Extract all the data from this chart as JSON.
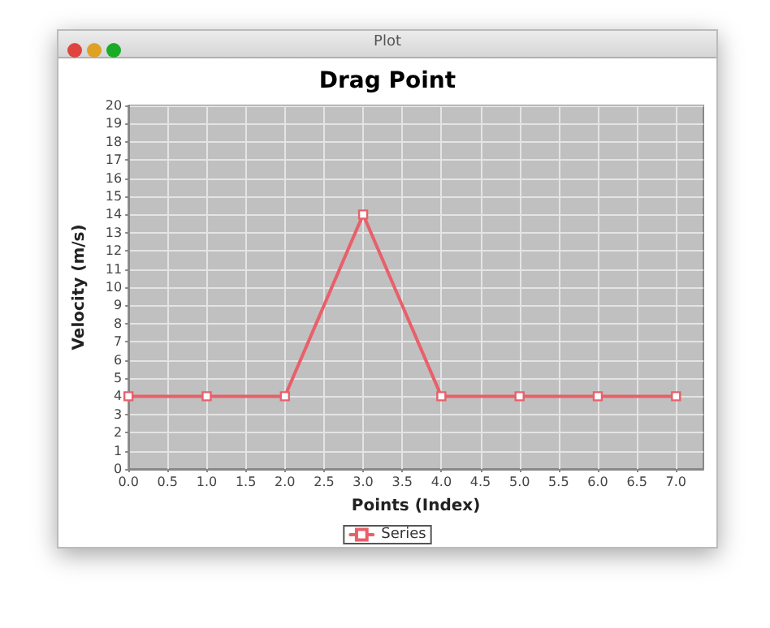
{
  "chart_data": {
    "type": "line",
    "title": "Drag Point",
    "xlabel": "Points (Index)",
    "ylabel": "Velocity (m/s)",
    "annotations": [
      "Plot"
    ],
    "x": [
      0,
      1,
      2,
      3,
      4,
      5,
      6,
      7
    ],
    "series": [
      {
        "name": "Series",
        "color": "#e8606a",
        "values": [
          4,
          4,
          4,
          14,
          4,
          4,
          4,
          4
        ]
      }
    ],
    "xlim": [
      0,
      7.35
    ],
    "xticks": [
      {
        "value": 0,
        "label": "0.0"
      },
      0.5,
      {
        "value": 1,
        "label": "1.0"
      },
      1.5,
      {
        "value": 2,
        "label": "2.0"
      },
      2.5,
      {
        "value": 3,
        "label": "3.0"
      },
      3.5,
      {
        "value": 4,
        "label": "4.0"
      },
      4.5,
      {
        "value": 5,
        "label": "5.0"
      },
      5.5,
      {
        "value": 6,
        "label": "6.0"
      },
      6.5,
      {
        "value": 7,
        "label": "7.0"
      }
    ],
    "ylim": [
      0,
      20
    ],
    "yticks": [
      0,
      1,
      2,
      3,
      4,
      5,
      6,
      7,
      8,
      9,
      10,
      11,
      12,
      13,
      14,
      15,
      16,
      17,
      18,
      19,
      20
    ],
    "grid": true,
    "legend": "bottom",
    "marker": "square",
    "line_style": "solid"
  }
}
